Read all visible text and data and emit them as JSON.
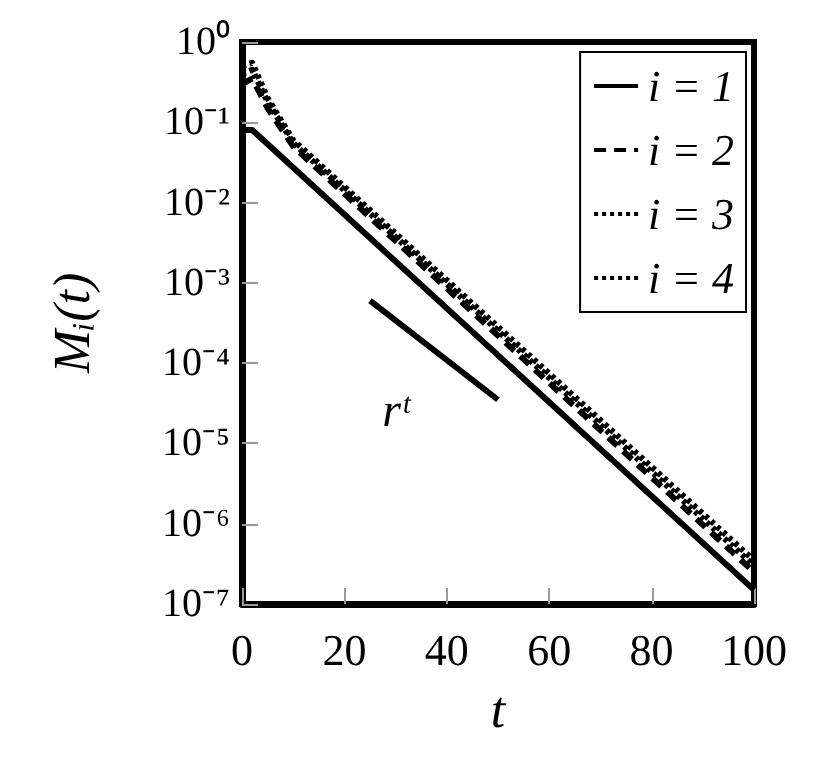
{
  "chart_data": {
    "type": "line",
    "xlabel": "t",
    "ylabel": "Mᵢ(t)",
    "xlim": [
      0,
      100
    ],
    "xticks": [
      0,
      20,
      40,
      60,
      80,
      100
    ],
    "ylim": [
      1e-07,
      1
    ],
    "yticks": [
      {
        "value": 1e-07,
        "label": "10⁻⁷"
      },
      {
        "value": 1e-06,
        "label": "10⁻⁶"
      },
      {
        "value": 1e-05,
        "label": "10⁻⁵"
      },
      {
        "value": 0.0001,
        "label": "10⁻⁴"
      },
      {
        "value": 0.001,
        "label": "10⁻³"
      },
      {
        "value": 0.01,
        "label": "10⁻²"
      },
      {
        "value": 0.1,
        "label": "10⁻¹"
      },
      {
        "value": 1,
        "label": "10⁰"
      }
    ],
    "log": "y",
    "grid": false,
    "legend": "top right",
    "marker": "none",
    "series": [
      {
        "name": "i = 1",
        "color": "#000000",
        "line_style": "solid",
        "x": [
          0,
          2,
          100
        ],
        "values": [
          0.08,
          0.08,
          1.5e-07
        ]
      },
      {
        "name": "i = 2",
        "color": "#000000",
        "line_style": "dashed",
        "x": [
          0,
          2,
          5,
          10,
          100
        ],
        "values": [
          0.3,
          0.35,
          0.15,
          0.05,
          2.5e-07
        ]
      },
      {
        "name": "i = 3",
        "color": "#000000",
        "line_style": "dotted",
        "x": [
          0,
          2,
          5,
          10,
          100
        ],
        "values": [
          0.4,
          0.45,
          0.18,
          0.055,
          3e-07
        ]
      },
      {
        "name": "i = 4",
        "color": "#000000",
        "line_style": "dotted",
        "x": [
          0,
          2,
          5,
          10,
          100
        ],
        "values": [
          0.5,
          0.55,
          0.2,
          0.06,
          3.5e-07
        ]
      },
      {
        "type": "line",
        "color": "#000000",
        "line_style": "solid",
        "x": [
          25,
          50
        ],
        "values": [
          0.0006,
          3.5e-05
        ]
      }
    ],
    "annotations": [
      "rᵗ"
    ]
  }
}
